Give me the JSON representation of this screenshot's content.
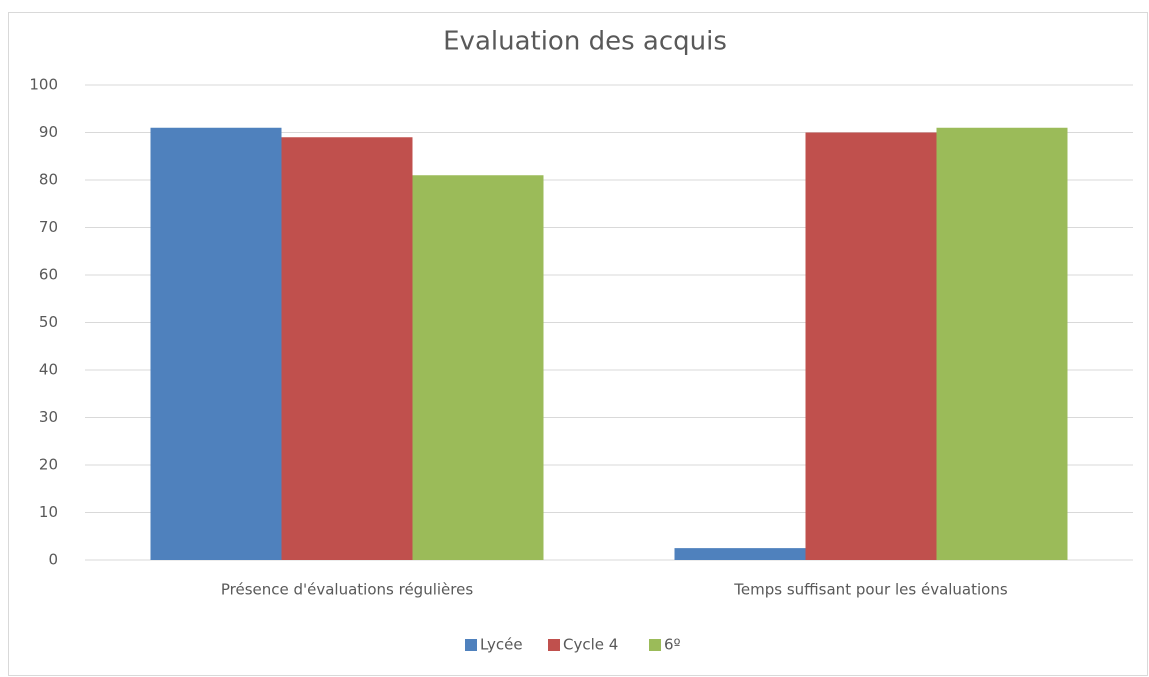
{
  "chart_data": {
    "type": "bar",
    "title": "Evaluation des acquis",
    "categories": [
      "Présence d'évaluations régulières",
      "Temps suffisant pour les évaluations"
    ],
    "series": [
      {
        "name": "Lycée",
        "color": "#4f81bd",
        "values": [
          91,
          2.5
        ]
      },
      {
        "name": "Cycle 4",
        "color": "#c0504d",
        "values": [
          89,
          90
        ]
      },
      {
        "name": "6º",
        "color": "#9bbb59",
        "values": [
          81,
          91
        ]
      }
    ],
    "ylim": [
      0,
      100
    ],
    "yticks": [
      0,
      10,
      20,
      30,
      40,
      50,
      60,
      70,
      80,
      90,
      100
    ],
    "grid": true,
    "legend": "bottom"
  }
}
